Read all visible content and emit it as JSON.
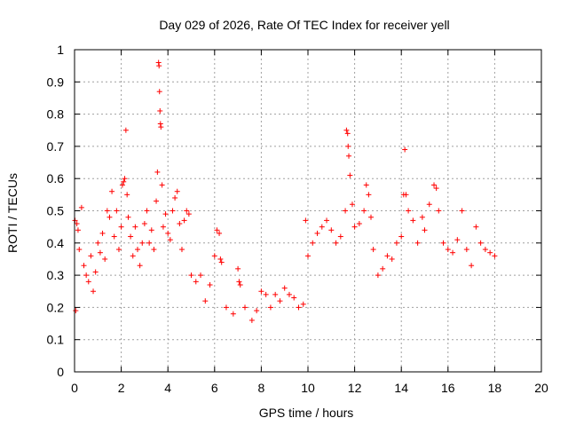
{
  "chart_data": {
    "type": "scatter",
    "title": "Day 029 of 2026, Rate Of TEC Index for receiver yell",
    "xlabel": "GPS time / hours",
    "ylabel": "ROTI / TECUs",
    "xlim": [
      0,
      20
    ],
    "ylim": [
      0,
      1
    ],
    "xticks": [
      "0",
      "2",
      "4",
      "6",
      "8",
      "10",
      "12",
      "14",
      "16",
      "18",
      "20"
    ],
    "yticks": [
      "0",
      "0.1",
      "0.2",
      "0.3",
      "0.4",
      "0.5",
      "0.6",
      "0.7",
      "0.8",
      "0.9",
      "1"
    ],
    "grid": true,
    "marker": "+",
    "color": "#ff0000",
    "series": [
      {
        "name": "ROTI",
        "points": [
          [
            0.02,
            0.47
          ],
          [
            0.05,
            0.19
          ],
          [
            0.1,
            0.46
          ],
          [
            0.15,
            0.44
          ],
          [
            0.2,
            0.38
          ],
          [
            0.3,
            0.51
          ],
          [
            0.4,
            0.33
          ],
          [
            0.5,
            0.3
          ],
          [
            0.6,
            0.28
          ],
          [
            0.7,
            0.36
          ],
          [
            0.8,
            0.25
          ],
          [
            0.9,
            0.31
          ],
          [
            1.0,
            0.4
          ],
          [
            1.1,
            0.37
          ],
          [
            1.2,
            0.43
          ],
          [
            1.3,
            0.35
          ],
          [
            1.4,
            0.5
          ],
          [
            1.5,
            0.48
          ],
          [
            1.6,
            0.56
          ],
          [
            1.7,
            0.42
          ],
          [
            1.8,
            0.5
          ],
          [
            1.9,
            0.38
          ],
          [
            2.0,
            0.45
          ],
          [
            2.05,
            0.58
          ],
          [
            2.1,
            0.59
          ],
          [
            2.15,
            0.6
          ],
          [
            2.2,
            0.75
          ],
          [
            2.25,
            0.55
          ],
          [
            2.3,
            0.48
          ],
          [
            2.4,
            0.42
          ],
          [
            2.5,
            0.36
          ],
          [
            2.6,
            0.45
          ],
          [
            2.7,
            0.38
          ],
          [
            2.8,
            0.33
          ],
          [
            2.9,
            0.4
          ],
          [
            3.0,
            0.46
          ],
          [
            3.1,
            0.5
          ],
          [
            3.2,
            0.4
          ],
          [
            3.3,
            0.44
          ],
          [
            3.4,
            0.38
          ],
          [
            3.5,
            0.53
          ],
          [
            3.55,
            0.62
          ],
          [
            3.6,
            0.96
          ],
          [
            3.62,
            0.95
          ],
          [
            3.64,
            0.87
          ],
          [
            3.66,
            0.81
          ],
          [
            3.68,
            0.77
          ],
          [
            3.7,
            0.76
          ],
          [
            3.75,
            0.58
          ],
          [
            3.8,
            0.45
          ],
          [
            3.9,
            0.49
          ],
          [
            4.0,
            0.43
          ],
          [
            4.1,
            0.41
          ],
          [
            4.2,
            0.5
          ],
          [
            4.3,
            0.54
          ],
          [
            4.4,
            0.56
          ],
          [
            4.5,
            0.46
          ],
          [
            4.6,
            0.38
          ],
          [
            4.7,
            0.47
          ],
          [
            4.8,
            0.5
          ],
          [
            4.9,
            0.49
          ],
          [
            5.0,
            0.3
          ],
          [
            5.2,
            0.28
          ],
          [
            5.4,
            0.3
          ],
          [
            5.6,
            0.22
          ],
          [
            5.8,
            0.27
          ],
          [
            6.0,
            0.36
          ],
          [
            6.1,
            0.44
          ],
          [
            6.2,
            0.43
          ],
          [
            6.25,
            0.35
          ],
          [
            6.3,
            0.34
          ],
          [
            6.5,
            0.2
          ],
          [
            6.8,
            0.18
          ],
          [
            7.0,
            0.32
          ],
          [
            7.05,
            0.28
          ],
          [
            7.1,
            0.27
          ],
          [
            7.3,
            0.2
          ],
          [
            7.6,
            0.16
          ],
          [
            7.8,
            0.19
          ],
          [
            8.0,
            0.25
          ],
          [
            8.2,
            0.24
          ],
          [
            8.4,
            0.2
          ],
          [
            8.6,
            0.24
          ],
          [
            8.8,
            0.22
          ],
          [
            9.0,
            0.26
          ],
          [
            9.2,
            0.24
          ],
          [
            9.4,
            0.23
          ],
          [
            9.6,
            0.2
          ],
          [
            9.8,
            0.21
          ],
          [
            9.9,
            0.47
          ],
          [
            10.0,
            0.36
          ],
          [
            10.2,
            0.4
          ],
          [
            10.4,
            0.43
          ],
          [
            10.6,
            0.45
          ],
          [
            10.8,
            0.47
          ],
          [
            11.0,
            0.44
          ],
          [
            11.2,
            0.4
          ],
          [
            11.4,
            0.42
          ],
          [
            11.6,
            0.5
          ],
          [
            11.65,
            0.75
          ],
          [
            11.7,
            0.74
          ],
          [
            11.72,
            0.7
          ],
          [
            11.75,
            0.67
          ],
          [
            11.8,
            0.61
          ],
          [
            11.9,
            0.52
          ],
          [
            12.0,
            0.45
          ],
          [
            12.2,
            0.46
          ],
          [
            12.4,
            0.5
          ],
          [
            12.5,
            0.58
          ],
          [
            12.6,
            0.55
          ],
          [
            12.7,
            0.48
          ],
          [
            12.8,
            0.38
          ],
          [
            13.0,
            0.3
          ],
          [
            13.2,
            0.32
          ],
          [
            13.4,
            0.36
          ],
          [
            13.6,
            0.35
          ],
          [
            13.8,
            0.4
          ],
          [
            14.0,
            0.42
          ],
          [
            14.1,
            0.55
          ],
          [
            14.15,
            0.69
          ],
          [
            14.2,
            0.55
          ],
          [
            14.3,
            0.5
          ],
          [
            14.5,
            0.47
          ],
          [
            14.7,
            0.4
          ],
          [
            14.9,
            0.48
          ],
          [
            15.0,
            0.44
          ],
          [
            15.2,
            0.52
          ],
          [
            15.4,
            0.58
          ],
          [
            15.5,
            0.57
          ],
          [
            15.6,
            0.5
          ],
          [
            15.8,
            0.4
          ],
          [
            16.0,
            0.38
          ],
          [
            16.2,
            0.37
          ],
          [
            16.4,
            0.41
          ],
          [
            16.6,
            0.5
          ],
          [
            16.8,
            0.38
          ],
          [
            17.0,
            0.33
          ],
          [
            17.2,
            0.45
          ],
          [
            17.4,
            0.4
          ],
          [
            17.6,
            0.38
          ],
          [
            17.8,
            0.37
          ],
          [
            18.0,
            0.36
          ]
        ]
      }
    ]
  }
}
